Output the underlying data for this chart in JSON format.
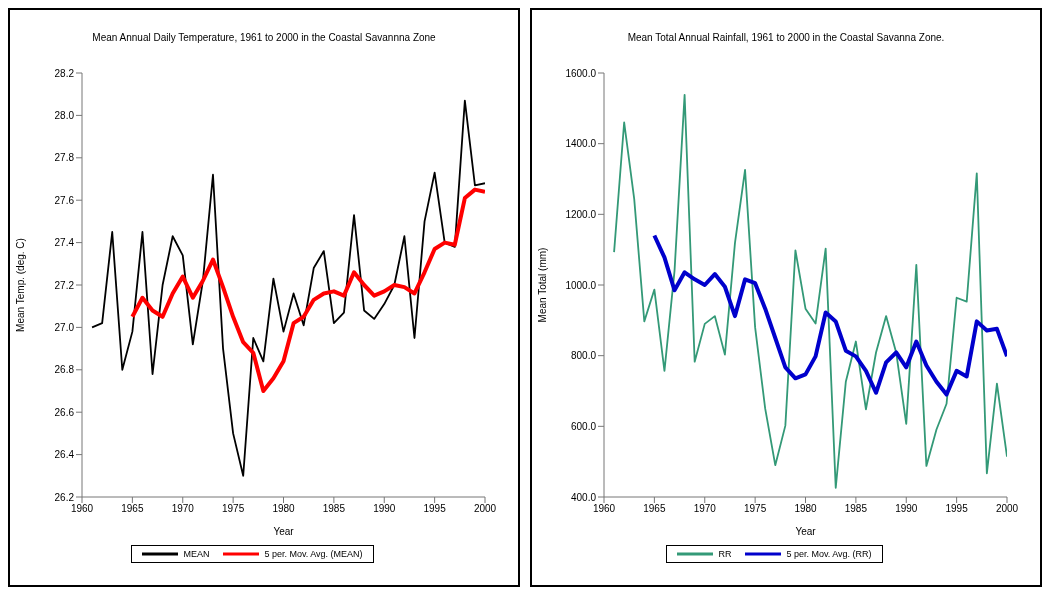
{
  "chart_data": [
    {
      "type": "line",
      "title": "Mean Annual Daily Temperature, 1961 to 2000 in the Coastal Savannna Zone",
      "xlabel": "Year",
      "ylabel": "Mean Temp. (deg. C)",
      "x": [
        1961,
        1962,
        1963,
        1964,
        1965,
        1966,
        1967,
        1968,
        1969,
        1970,
        1971,
        1972,
        1973,
        1974,
        1975,
        1976,
        1977,
        1978,
        1979,
        1980,
        1981,
        1982,
        1983,
        1984,
        1985,
        1986,
        1987,
        1988,
        1989,
        1990,
        1991,
        1992,
        1993,
        1994,
        1995,
        1996,
        1997,
        1998,
        1999,
        2000
      ],
      "xlim": [
        1960,
        2000
      ],
      "xticks": [
        1960,
        1965,
        1970,
        1975,
        1980,
        1985,
        1990,
        1995,
        2000
      ],
      "ylim": [
        26.2,
        28.2
      ],
      "yticks": [
        {
          "value": 26.2,
          "label": "26.2"
        },
        {
          "value": 26.4,
          "label": "26.4"
        },
        {
          "value": 26.6,
          "label": "26.6"
        },
        {
          "value": 26.8,
          "label": "26.8"
        },
        {
          "value": 27,
          "label": "27.0"
        },
        {
          "value": 27.2,
          "label": "27.2"
        },
        {
          "value": 27.4,
          "label": "27.4"
        },
        {
          "value": 27.6,
          "label": "27.6"
        },
        {
          "value": 27.8,
          "label": "27.8"
        },
        {
          "value": 28,
          "label": "28.0"
        },
        {
          "value": 28.2,
          "label": "28.2"
        }
      ],
      "legend": "bottom",
      "marker": "none",
      "series": [
        {
          "name": "MEAN",
          "color": "#000000",
          "values": [
            27.0,
            27.02,
            27.45,
            26.8,
            26.98,
            27.45,
            26.78,
            27.2,
            27.43,
            27.34,
            26.92,
            27.22,
            27.72,
            26.9,
            26.5,
            26.3,
            26.95,
            26.84,
            27.23,
            26.98,
            27.16,
            27.01,
            27.28,
            27.36,
            27.02,
            27.07,
            27.53,
            27.08,
            27.04,
            27.11,
            27.2,
            27.43,
            26.95,
            27.5,
            27.73,
            27.4,
            27.38,
            28.07,
            27.67,
            27.68
          ]
        },
        {
          "name": "5 per. Mov. Avg. (MEAN)",
          "color": "#ff0000",
          "values": [
            null,
            null,
            null,
            null,
            27.05,
            27.14,
            27.08,
            27.05,
            27.16,
            27.24,
            27.14,
            27.22,
            27.32,
            27.19,
            27.05,
            26.93,
            26.88,
            26.7,
            26.76,
            26.84,
            27.02,
            27.05,
            27.13,
            27.16,
            27.17,
            27.15,
            27.26,
            27.2,
            27.15,
            27.17,
            27.2,
            27.19,
            27.16,
            27.26,
            27.37,
            27.4,
            27.39,
            27.61,
            27.65,
            27.64
          ]
        }
      ]
    },
    {
      "type": "line",
      "title": "Mean Total Annual Rainfall, 1961 to 2000 in the Coastal Savanna Zone.",
      "xlabel": "Year",
      "ylabel": "Mean Total (mm)",
      "x": [
        1961,
        1962,
        1963,
        1964,
        1965,
        1966,
        1967,
        1968,
        1969,
        1970,
        1971,
        1972,
        1973,
        1974,
        1975,
        1976,
        1977,
        1978,
        1979,
        1980,
        1981,
        1982,
        1983,
        1984,
        1985,
        1986,
        1987,
        1988,
        1989,
        1990,
        1991,
        1992,
        1993,
        1994,
        1995,
        1996,
        1997,
        1998,
        1999,
        2000
      ],
      "xlim": [
        1960,
        2000
      ],
      "xticks": [
        1960,
        1965,
        1970,
        1975,
        1980,
        1985,
        1990,
        1995,
        2000
      ],
      "ylim": [
        400,
        1600
      ],
      "yticks": [
        {
          "value": 400,
          "label": "400.0"
        },
        {
          "value": 600,
          "label": "600.0"
        },
        {
          "value": 800,
          "label": "800.0"
        },
        {
          "value": 1000,
          "label": "1000.0"
        },
        {
          "value": 1200,
          "label": "1200.0"
        },
        {
          "value": 1400,
          "label": "1400.0"
        },
        {
          "value": 1600,
          "label": "1600.0"
        }
      ],
      "legend": "bottom",
      "marker": "none",
      "series": [
        {
          "name": "RR",
          "color": "#339977",
          "values": [
            1093,
            1460,
            1243,
            897,
            987,
            757,
            1040,
            1538,
            783,
            890,
            912,
            803,
            1119,
            1326,
            880,
            650,
            490,
            602,
            1098,
            933,
            891,
            1103,
            426,
            726,
            840,
            648,
            809,
            912,
            809,
            607,
            1057,
            488,
            591,
            664,
            964,
            953,
            1316,
            467,
            721,
            514
          ]
        },
        {
          "name": "5 per. Mov. Avg. (RR)",
          "color": "#0000cc",
          "values": [
            null,
            null,
            null,
            null,
            1140,
            1078,
            985,
            1036,
            1016,
            1000,
            1031,
            995,
            912,
            1016,
            1005,
            933,
            850,
            767,
            736,
            747,
            798,
            922,
            897,
            814,
            798,
            757,
            695,
            781,
            809,
            767,
            840,
            772,
            726,
            690,
            757,
            741,
            897,
            871,
            876,
            798
          ]
        }
      ]
    }
  ]
}
